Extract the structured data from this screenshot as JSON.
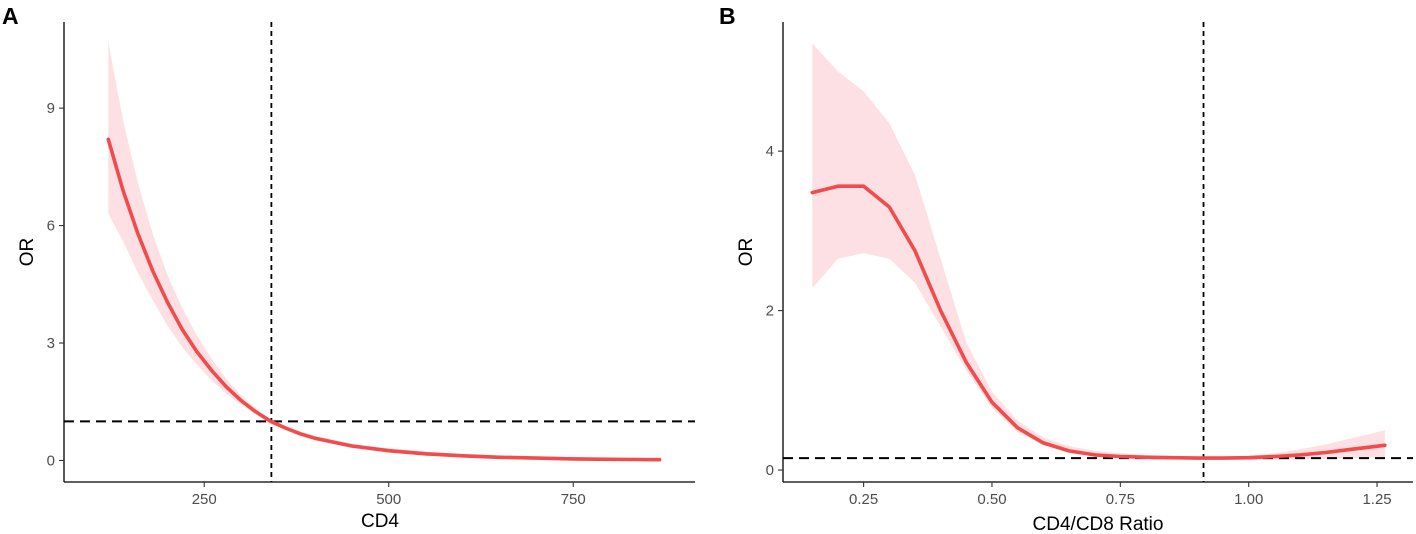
{
  "chart_data": [
    {
      "panel_label": "A",
      "type": "line",
      "xlabel": "CD4",
      "ylabel": "OR",
      "xlim": [
        60,
        915
      ],
      "ylim": [
        -0.55,
        11.2
      ],
      "x_ticks": [
        250,
        500,
        750
      ],
      "x_tick_labels": [
        "250",
        "500",
        "750"
      ],
      "y_ticks": [
        0,
        3,
        6,
        9
      ],
      "y_tick_labels": [
        "0",
        "3",
        "6",
        "9"
      ],
      "reference_lines": {
        "vertical_x": 341,
        "horizontal_y": 1
      },
      "line_color": "#f24b4b",
      "ribbon_color": "#fde0e3",
      "series": [
        {
          "x": [
            120,
            140,
            160,
            180,
            200,
            220,
            240,
            260,
            280,
            300,
            320,
            340,
            360,
            380,
            400,
            450,
            500,
            550,
            600,
            650,
            700,
            750,
            800,
            867
          ],
          "y": [
            8.2,
            6.9,
            5.8,
            4.85,
            4.05,
            3.35,
            2.78,
            2.3,
            1.88,
            1.53,
            1.24,
            1.0,
            0.83,
            0.68,
            0.57,
            0.37,
            0.25,
            0.17,
            0.12,
            0.08,
            0.06,
            0.04,
            0.03,
            0.02
          ],
          "lower": [
            6.3,
            5.6,
            4.8,
            4.1,
            3.45,
            2.9,
            2.45,
            2.05,
            1.7,
            1.43,
            1.18,
            0.95,
            0.78,
            0.63,
            0.52,
            0.32,
            0.2,
            0.12,
            0.08,
            0.05,
            0.03,
            0.02,
            0.01,
            0.0
          ],
          "upper": [
            10.7,
            8.7,
            7.1,
            5.8,
            4.75,
            3.9,
            3.2,
            2.6,
            2.08,
            1.66,
            1.32,
            1.05,
            0.88,
            0.74,
            0.63,
            0.43,
            0.31,
            0.23,
            0.17,
            0.13,
            0.1,
            0.08,
            0.07,
            0.06
          ]
        }
      ]
    },
    {
      "panel_label": "B",
      "type": "line",
      "xlabel": "CD4/CD8 Ratio",
      "ylabel": "OR",
      "xlim": [
        0.093,
        1.32
      ],
      "ylim": [
        -0.15,
        5.62
      ],
      "x_ticks": [
        0.25,
        0.5,
        0.75,
        1.0,
        1.25
      ],
      "x_tick_labels": [
        "0.25",
        "0.50",
        "0.75",
        "1.00",
        "1.25"
      ],
      "y_ticks": [
        0,
        2,
        4
      ],
      "y_tick_labels": [
        "0",
        "2",
        "4"
      ],
      "reference_lines": {
        "vertical_x": 0.912,
        "horizontal_y": 0.15
      },
      "line_color": "#f24b4b",
      "ribbon_color": "#fde0e3",
      "series": [
        {
          "x": [
            0.15,
            0.2,
            0.25,
            0.3,
            0.35,
            0.4,
            0.45,
            0.5,
            0.55,
            0.6,
            0.65,
            0.7,
            0.75,
            0.8,
            0.85,
            0.9,
            0.95,
            1.0,
            1.05,
            1.1,
            1.15,
            1.2,
            1.265
          ],
          "y": [
            3.48,
            3.56,
            3.56,
            3.3,
            2.75,
            2.0,
            1.35,
            0.85,
            0.53,
            0.34,
            0.24,
            0.19,
            0.17,
            0.16,
            0.155,
            0.15,
            0.15,
            0.155,
            0.17,
            0.19,
            0.22,
            0.26,
            0.31
          ],
          "lower": [
            2.28,
            2.65,
            2.72,
            2.65,
            2.35,
            1.8,
            1.25,
            0.78,
            0.48,
            0.31,
            0.22,
            0.17,
            0.15,
            0.14,
            0.135,
            0.13,
            0.13,
            0.13,
            0.13,
            0.13,
            0.14,
            0.15,
            0.16
          ],
          "upper": [
            5.35,
            5.0,
            4.75,
            4.35,
            3.7,
            2.65,
            1.6,
            0.98,
            0.62,
            0.41,
            0.3,
            0.24,
            0.21,
            0.19,
            0.18,
            0.17,
            0.17,
            0.18,
            0.21,
            0.26,
            0.32,
            0.4,
            0.5
          ]
        }
      ]
    }
  ]
}
